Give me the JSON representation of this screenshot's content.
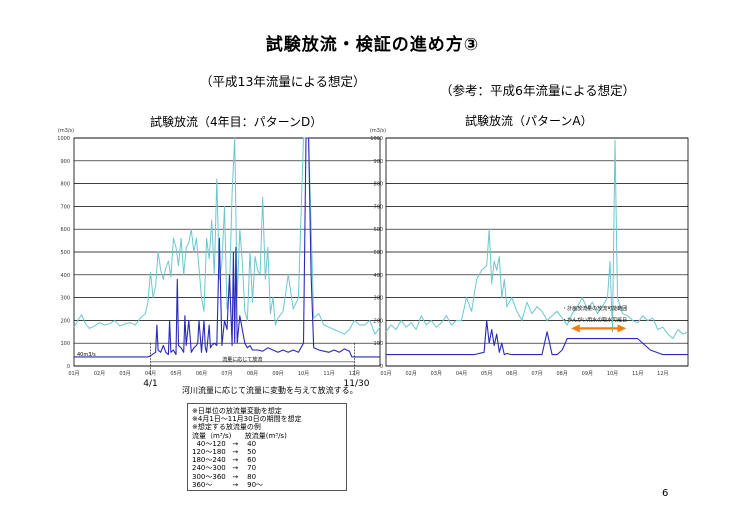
{
  "title": "試験放流・検証の進め方③",
  "subtitle_left": "（平成13年流量による想定）",
  "subtitle_right": "（参考：平成6年流量による想定）",
  "page_number": "6",
  "colors": {
    "river_flow": "#6cc7cf",
    "release_flow": "#2a2ab8",
    "arrow": "#f07f0e",
    "grid": "#000000"
  },
  "notes": [
    "※日単位の放流量変動を想定",
    "※4月1日～11月30日の期間を想定",
    "※想定する放流量の例",
    "流量（m³/s)      放流量(m³/s)",
    "  40～120   →    40",
    "120～180   →    50",
    "180～240   →    60",
    "240～300   →    70",
    "300～360   →    80",
    "360～         →    90～"
  ],
  "chart_data": [
    {
      "type": "line",
      "title": "試験放流（4年目：パターンD）",
      "ylabel": "(m3/s)",
      "ylim": [
        0,
        1000
      ],
      "yticks": [
        "0",
        "100",
        "200",
        "300",
        "400",
        "500",
        "600",
        "700",
        "800",
        "900",
        "1000"
      ],
      "x_ticks": [
        "01月",
        "02月",
        "03月",
        "04月",
        "05月",
        "06月",
        "07月",
        "08月",
        "09月",
        "10月",
        "11月",
        "12月"
      ],
      "series": [
        {
          "role": "river_flow",
          "x": [
            0,
            0.15,
            0.3,
            0.45,
            0.6,
            0.8,
            1.0,
            1.2,
            1.4,
            1.6,
            1.8,
            2.0,
            2.2,
            2.4,
            2.6,
            2.8,
            2.9,
            3.0,
            3.1,
            3.2,
            3.3,
            3.4,
            3.5,
            3.6,
            3.7,
            3.8,
            3.9,
            4.0,
            4.1,
            4.2,
            4.3,
            4.4,
            4.5,
            4.6,
            4.7,
            4.8,
            4.9,
            5.0,
            5.1,
            5.2,
            5.3,
            5.4,
            5.5,
            5.6,
            5.7,
            5.8,
            5.9,
            6.0,
            6.1,
            6.2,
            6.3,
            6.4,
            6.5,
            6.6,
            6.7,
            6.8,
            6.9,
            7.0,
            7.1,
            7.2,
            7.3,
            7.4,
            7.5,
            7.6,
            7.7,
            7.8,
            7.9,
            8.0,
            8.2,
            8.4,
            8.6,
            8.8,
            9.0,
            9.2,
            9.4,
            9.6,
            9.8,
            10.0,
            10.2,
            10.4,
            10.6,
            10.8,
            11.0,
            11.2,
            11.4,
            11.6,
            11.8,
            12.0
          ],
          "values": [
            170,
            200,
            225,
            185,
            165,
            175,
            190,
            180,
            185,
            200,
            175,
            185,
            190,
            180,
            210,
            230,
            280,
            410,
            300,
            350,
            500,
            420,
            380,
            430,
            460,
            390,
            560,
            520,
            440,
            560,
            400,
            520,
            540,
            600,
            500,
            560,
            430,
            300,
            240,
            560,
            470,
            640,
            400,
            820,
            380,
            450,
            700,
            250,
            330,
            760,
            1000,
            300,
            600,
            460,
            240,
            200,
            500,
            280,
            480,
            420,
            400,
            740,
            380,
            520,
            230,
            300,
            180,
            210,
            240,
            400,
            250,
            300,
            1000,
            1000,
            210,
            230,
            180,
            170,
            160,
            150,
            140,
            160,
            200,
            180,
            180,
            200,
            140,
            170
          ]
        },
        {
          "role": "release_flow",
          "x": [
            0,
            0.5,
            1.0,
            1.5,
            2.0,
            2.5,
            2.9,
            3.0,
            3.2,
            3.25,
            3.3,
            3.4,
            3.5,
            3.6,
            3.7,
            3.75,
            3.8,
            3.9,
            4.0,
            4.05,
            4.1,
            4.2,
            4.3,
            4.35,
            4.4,
            4.5,
            4.6,
            4.7,
            4.8,
            4.85,
            4.9,
            5.0,
            5.1,
            5.15,
            5.2,
            5.3,
            5.35,
            5.4,
            5.5,
            5.6,
            5.7,
            5.8,
            5.9,
            6.0,
            6.1,
            6.2,
            6.25,
            6.3,
            6.35,
            6.4,
            6.5,
            6.6,
            6.7,
            6.8,
            6.9,
            7.0,
            7.2,
            7.4,
            7.6,
            7.8,
            8.0,
            8.2,
            8.4,
            8.6,
            8.8,
            9.0,
            9.1,
            9.2,
            9.3,
            9.4,
            9.6,
            9.8,
            10.0,
            10.2,
            10.4,
            10.6,
            10.8,
            10.9,
            11.0,
            11.5,
            12.0
          ],
          "values": [
            40,
            40,
            40,
            40,
            40,
            40,
            40,
            45,
            60,
            180,
            70,
            60,
            90,
            60,
            50,
            200,
            60,
            70,
            50,
            380,
            90,
            80,
            60,
            220,
            90,
            200,
            60,
            80,
            90,
            100,
            200,
            60,
            200,
            80,
            60,
            180,
            80,
            90,
            100,
            90,
            560,
            90,
            200,
            160,
            400,
            90,
            500,
            100,
            520,
            100,
            220,
            160,
            100,
            80,
            90,
            70,
            70,
            65,
            80,
            70,
            60,
            70,
            60,
            70,
            60,
            100,
            1000,
            1000,
            400,
            80,
            70,
            65,
            60,
            70,
            60,
            75,
            65,
            40,
            40,
            40,
            40
          ]
        }
      ],
      "annotations": [
        {
          "text": "4/1",
          "x": 3.0
        },
        {
          "text": "11/30",
          "x": 11.0
        },
        {
          "text": "40m3/s",
          "x": 0.2
        },
        {
          "text": "流量に応じて放流",
          "x": 6.5
        }
      ],
      "caption": "河川流量に応じて流量に変動を与えて放流する。"
    },
    {
      "type": "line",
      "title": "試験放流（パターンA）",
      "ylabel": "(m3/s)",
      "ylim": [
        0,
        1000
      ],
      "yticks": [
        "0",
        "100",
        "200",
        "300",
        "400",
        "500",
        "600",
        "700",
        "800",
        "900",
        "1000"
      ],
      "x_ticks": [
        "01月",
        "02月",
        "03月",
        "04月",
        "05月",
        "06月",
        "07月",
        "08月",
        "09月",
        "10月",
        "11月",
        "12月"
      ],
      "series": [
        {
          "role": "river_flow",
          "x": [
            0,
            0.2,
            0.4,
            0.6,
            0.8,
            1.0,
            1.2,
            1.4,
            1.6,
            1.8,
            2.0,
            2.2,
            2.4,
            2.6,
            2.8,
            3.0,
            3.2,
            3.4,
            3.6,
            3.8,
            4.0,
            4.1,
            4.2,
            4.3,
            4.4,
            4.5,
            4.6,
            4.7,
            4.8,
            5.0,
            5.2,
            5.4,
            5.6,
            5.8,
            6.0,
            6.2,
            6.4,
            6.6,
            6.8,
            7.0,
            7.2,
            7.4,
            7.6,
            7.8,
            8.0,
            8.2,
            8.4,
            8.6,
            8.8,
            8.9,
            9.0,
            9.1,
            9.2,
            9.4,
            9.6,
            9.8,
            10.0,
            10.2,
            10.4,
            10.6,
            10.8,
            11.0,
            11.2,
            11.4,
            11.6,
            11.8,
            12.0
          ],
          "values": [
            150,
            180,
            160,
            200,
            170,
            190,
            160,
            220,
            180,
            200,
            170,
            190,
            220,
            180,
            200,
            200,
            300,
            240,
            380,
            420,
            440,
            600,
            360,
            460,
            420,
            480,
            300,
            380,
            260,
            300,
            240,
            200,
            280,
            230,
            260,
            240,
            200,
            220,
            240,
            210,
            180,
            230,
            260,
            300,
            250,
            280,
            230,
            260,
            300,
            460,
            150,
            990,
            300,
            230,
            220,
            200,
            190,
            220,
            200,
            210,
            160,
            170,
            140,
            120,
            160,
            140,
            150
          ]
        },
        {
          "role": "release_flow",
          "x": [
            0,
            0.5,
            1.0,
            1.5,
            2.0,
            2.5,
            3.0,
            3.5,
            3.9,
            4.0,
            4.1,
            4.2,
            4.3,
            4.4,
            4.5,
            4.6,
            4.7,
            4.8,
            5.0,
            5.5,
            6.0,
            6.2,
            6.4,
            6.6,
            6.8,
            7.0,
            7.2,
            7.4,
            8.0,
            8.5,
            9.0,
            9.5,
            10.0,
            10.5,
            11.0,
            11.5,
            12.0
          ],
          "values": [
            50,
            50,
            50,
            50,
            50,
            50,
            50,
            50,
            60,
            200,
            100,
            160,
            90,
            140,
            60,
            100,
            50,
            55,
            50,
            50,
            50,
            50,
            150,
            50,
            50,
            70,
            120,
            120,
            120,
            120,
            120,
            120,
            120,
            70,
            50,
            50,
            50
          ]
        }
      ],
      "annotations": [
        {
          "text": "・計画放流量の放流可能範囲",
          "x": 7.0
        },
        {
          "text": "・かんがい用水の取水可能日",
          "x": 7.0
        }
      ]
    }
  ]
}
